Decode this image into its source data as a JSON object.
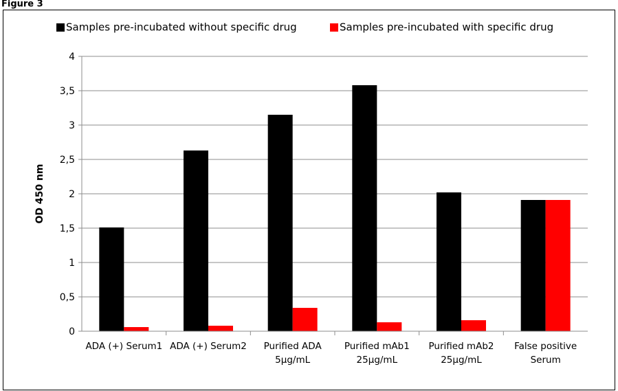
{
  "figure_label": "Figure 3",
  "chart_data": {
    "type": "bar",
    "title": "",
    "xlabel": "",
    "ylabel": "OD 450 nm",
    "ylim": [
      0,
      4
    ],
    "yticks": [
      "0",
      "0,5",
      "1",
      "1,5",
      "2",
      "2,5",
      "3",
      "3,5",
      "4"
    ],
    "grid": true,
    "legend_position": "top",
    "categories": [
      [
        "ADA (+) Serum1"
      ],
      [
        "ADA (+) Serum2"
      ],
      [
        "Purified ADA",
        "5µg/mL"
      ],
      [
        "Purified mAb1",
        "25µg/mL"
      ],
      [
        "Purified mAb2",
        "25µg/mL"
      ],
      [
        "False positive",
        "Serum"
      ]
    ],
    "series": [
      {
        "name": "Samples pre-incubated without specific drug",
        "color": "#000000",
        "values": [
          1.51,
          2.63,
          3.15,
          3.58,
          2.02,
          1.91
        ]
      },
      {
        "name": "Samples pre-incubated with specific drug",
        "color": "#ff0000",
        "values": [
          0.06,
          0.08,
          0.34,
          0.13,
          0.16,
          1.91
        ]
      }
    ]
  }
}
